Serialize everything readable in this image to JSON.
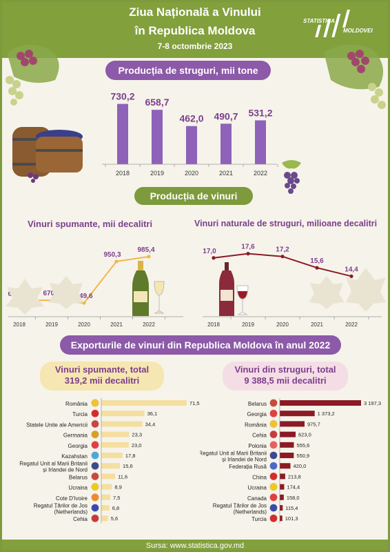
{
  "header": {
    "title_line1": "Ziua Națională a Vinului",
    "title_line2": "în Republica Moldova",
    "dates": "7-8 octombrie 2023",
    "logo_line1": "STATISTICA",
    "logo_line2": "MOLDOVEI"
  },
  "sections": {
    "grapes_title": "Producția de struguri, mii tone",
    "wines_title": "Producția de vinuri",
    "sparkling_title": "Vinuri spumante, mii decalitri",
    "natural_title": "Vinuri naturale de struguri, milioane decalitri",
    "exports_title": "Exporturile de vinuri din Republica Moldova în anul 2022",
    "sparkling_total_line1": "Vinuri spumante, total",
    "sparkling_total_line2": "319,2 mii decalitri",
    "grape_wine_total_line1": "Vinuri din struguri, total",
    "grape_wine_total_line2": "9 388,5 mii decalitri"
  },
  "footer": {
    "source": "Sursa: www.statistica.gov.md"
  },
  "colors": {
    "green": "#82a03c",
    "purple": "#8c5aa8",
    "bar_purple": "#8e62b8",
    "orange_line": "#f0b84a",
    "maroon": "#8b1a24",
    "cream_bar": "#f4dfa0"
  },
  "chart_data": [
    {
      "id": "grapes",
      "type": "bar",
      "title": "Producția de struguri, mii tone",
      "categories": [
        "2018",
        "2019",
        "2020",
        "2021",
        "2022"
      ],
      "values": [
        730.2,
        658.7,
        462.0,
        490.7,
        531.2
      ],
      "labels": [
        "730,2",
        "658,7",
        "462,0",
        "490,7",
        "531,2"
      ],
      "ylim": [
        0,
        800
      ]
    },
    {
      "id": "sparkling",
      "type": "line",
      "title": "Vinuri spumante, mii decalitri",
      "categories": [
        "2018",
        "2019",
        "2020",
        "2021",
        "2022"
      ],
      "values": [
        665.4,
        670.0,
        649.6,
        950.3,
        985.4
      ],
      "labels": [
        "665,4",
        "670,0",
        "649,6",
        "950,3",
        "985,4"
      ],
      "ylim": [
        550,
        1050
      ]
    },
    {
      "id": "natural",
      "type": "line",
      "title": "Vinuri naturale de struguri, milioane decalitri",
      "categories": [
        "2018",
        "2019",
        "2020",
        "2021",
        "2022"
      ],
      "values": [
        17.0,
        17.6,
        17.2,
        15.6,
        14.4
      ],
      "labels": [
        "17,0",
        "17,6",
        "17,2",
        "15,6",
        "14,4"
      ],
      "ylim": [
        12,
        20
      ]
    },
    {
      "id": "export_sparkling",
      "type": "bar",
      "orientation": "horizontal",
      "title": "Vinuri spumante, total 319,2 mii decalitri",
      "categories": [
        "România",
        "Turcia",
        "Statele Unite ale Americii",
        "Germania",
        "Georgia",
        "Kazahstan",
        "Regatul Unit al Marii Britanii și Irlandei de Nord",
        "Belarus",
        "Ucraina",
        "Cote D'Ivoire",
        "Regatul Țărilor de Jos (Netherlands)",
        "Cehia"
      ],
      "values": [
        71.5,
        36.1,
        34.4,
        23.3,
        23.0,
        17.8,
        15.6,
        11.6,
        8.9,
        7.5,
        6.8,
        5.6
      ],
      "labels": [
        "71,5",
        "36,1",
        "34,4",
        "23,3",
        "23,0",
        "17,8",
        "15,6",
        "11,6",
        "8,9",
        "7,5",
        "6,8",
        "5,6"
      ]
    },
    {
      "id": "export_grape",
      "type": "bar",
      "orientation": "horizontal",
      "title": "Vinuri din struguri, total 9 388,5 mii decalitri",
      "categories": [
        "Belarus",
        "Georgia",
        "România",
        "Cehia",
        "Polonia",
        "Regatul Unit al Marii Britanii și Irlandei de Nord",
        "Federația Rusă",
        "China",
        "Ucraina",
        "Canada",
        "Regatul Țărilor de Jos (Netherlands)",
        "Turcia"
      ],
      "values": [
        3197.3,
        1373.2,
        975.7,
        623.0,
        555.6,
        550.9,
        420.0,
        213.8,
        174.4,
        158.0,
        115.4,
        101.3
      ],
      "labels": [
        "3 197,3",
        "1 373,2",
        "975,7",
        "623,0",
        "555,6",
        "550,9",
        "420,0",
        "213,8",
        "174,4",
        "158,0",
        "115,4",
        "101,3"
      ]
    }
  ]
}
